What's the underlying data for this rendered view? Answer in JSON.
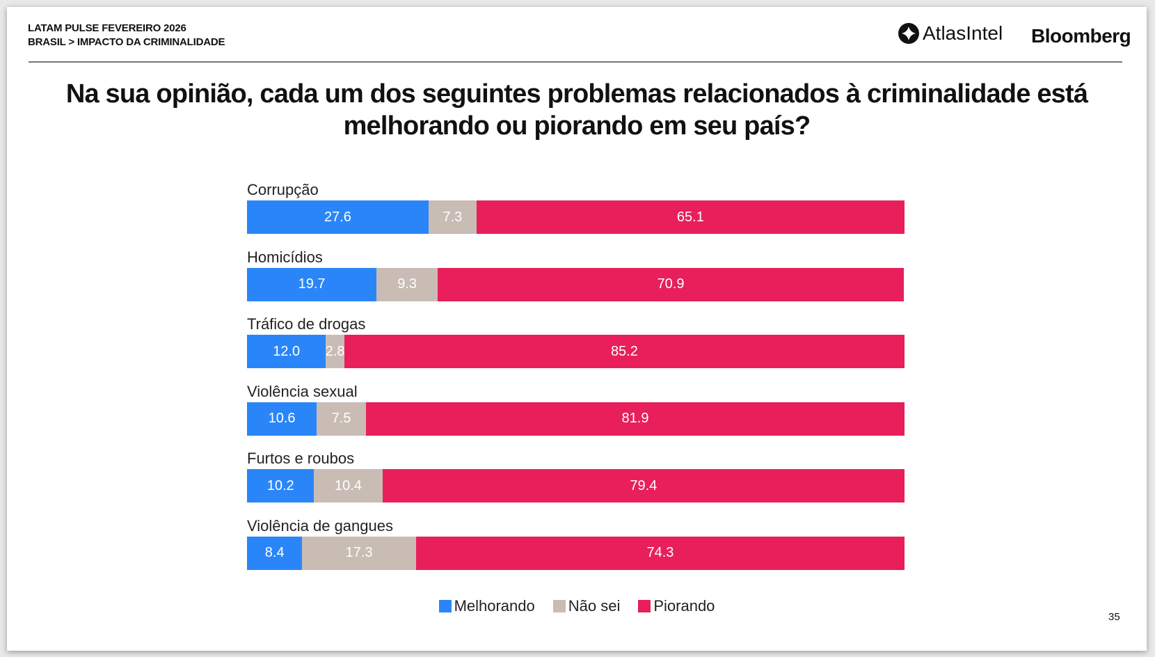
{
  "header": {
    "line1": "LATAM PULSE FEVEREIRO 2026",
    "line2": "BRASIL > IMPACTO DA CRIMINALIDADE",
    "logo_atlas": "AtlasIntel",
    "logo_bloomberg": "Bloomberg"
  },
  "page_number": "35",
  "chart_data": {
    "type": "bar",
    "orientation": "horizontal-stacked-100",
    "title": "Na sua opinião, cada um dos seguintes problemas relacionados à criminalidade está melhorando ou piorando em seu país?",
    "categories": [
      "Corrupção",
      "Homicídios",
      "Tráfico de drogas",
      "Violência sexual",
      "Furtos e roubos",
      "Violência de gangues"
    ],
    "series": [
      {
        "name": "Melhorando",
        "color": "#2a86f8",
        "values": [
          27.6,
          19.7,
          12.0,
          10.6,
          10.2,
          8.4
        ]
      },
      {
        "name": "Não sei",
        "color": "#c8bcb4",
        "values": [
          7.3,
          9.3,
          2.8,
          7.5,
          10.4,
          17.3
        ]
      },
      {
        "name": "Piorando",
        "color": "#e81f5a",
        "values": [
          65.1,
          70.9,
          85.2,
          81.9,
          79.4,
          74.3
        ]
      }
    ],
    "xlim": [
      0,
      100
    ],
    "legend": "bottom"
  }
}
